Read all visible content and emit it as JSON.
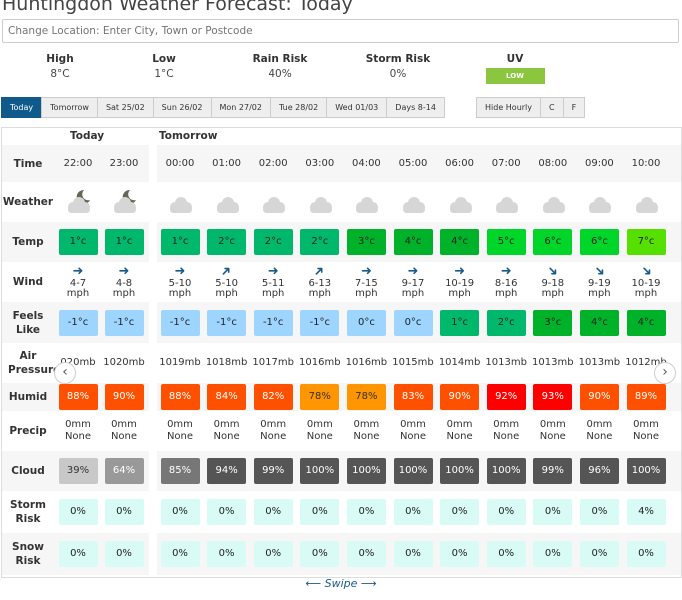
{
  "title": "Huntingdon Weather Forecast: Today",
  "search": {
    "placeholder": "Change Location: Enter City, Town or Postcode"
  },
  "summary": [
    {
      "label": "High",
      "value": "8°C"
    },
    {
      "label": "Low",
      "value": "1°C"
    },
    {
      "label": "Rain Risk",
      "value": "40%"
    },
    {
      "label": "Storm Risk",
      "value": "0%"
    }
  ],
  "uv": {
    "label": "UV",
    "value": "LOW",
    "color": "#8cc63f"
  },
  "tabs": [
    "Today",
    "Tomorrow",
    "Sat 25/02",
    "Sun 26/02",
    "Mon 27/02",
    "Tue 28/02",
    "Wed 01/03",
    "Days 8-14"
  ],
  "options": [
    "Hide Hourly",
    "C",
    "F"
  ],
  "days": [
    "Today",
    "Tomorrow"
  ],
  "row_labels": {
    "time": "Time",
    "weather": "Weather",
    "temp": "Temp",
    "wind": "Wind",
    "feels": "Feels Like",
    "pressure": "Air Pressure",
    "humid": "Humid",
    "precip": "Precip",
    "cloud": "Cloud",
    "storm": "Storm Risk",
    "snow": "Snow Risk"
  },
  "wind_unit": "mph",
  "swipe": "⟵ Swipe ⟶",
  "hours": [
    {
      "day": 0,
      "time": "22:00",
      "weather": "partly-cloudy-night-icon",
      "temp": "1°c",
      "temp_color": "#00b86b",
      "wind_dir": "E",
      "wind": "4-7",
      "feels": "-1°c",
      "feels_color": "#9dd5ff",
      "pressure": "020mb",
      "humid": "88%",
      "humid_color": "#ff5000",
      "precip": "0mm",
      "precip_type": "None",
      "cloud": "39%",
      "cloud_color": "#c8c8c8",
      "storm": "0%",
      "snow": "0%"
    },
    {
      "day": 0,
      "time": "23:00",
      "weather": "partly-cloudy-night-icon",
      "temp": "1°c",
      "temp_color": "#00b86b",
      "wind_dir": "E",
      "wind": "4-8",
      "feels": "-1°c",
      "feels_color": "#9dd5ff",
      "pressure": "1020mb",
      "humid": "90%",
      "humid_color": "#ff5000",
      "precip": "0mm",
      "precip_type": "None",
      "cloud": "64%",
      "cloud_color": "#999999",
      "storm": "0%",
      "snow": "0%"
    },
    {
      "day": 1,
      "time": "00:00",
      "weather": "cloud-icon",
      "temp": "1°c",
      "temp_color": "#00b86b",
      "wind_dir": "E",
      "wind": "5-10",
      "feels": "-1°c",
      "feels_color": "#9dd5ff",
      "pressure": "1019mb",
      "humid": "88%",
      "humid_color": "#ff5000",
      "precip": "0mm",
      "precip_type": "None",
      "cloud": "85%",
      "cloud_color": "#777777",
      "storm": "0%",
      "snow": "0%"
    },
    {
      "day": 1,
      "time": "01:00",
      "weather": "cloud-icon",
      "temp": "2°c",
      "temp_color": "#00b86b",
      "wind_dir": "NE",
      "wind": "5-10",
      "feels": "-1°c",
      "feels_color": "#9dd5ff",
      "pressure": "1018mb",
      "humid": "84%",
      "humid_color": "#ff5000",
      "precip": "0mm",
      "precip_type": "None",
      "cloud": "94%",
      "cloud_color": "#555555",
      "storm": "0%",
      "snow": "0%"
    },
    {
      "day": 1,
      "time": "02:00",
      "weather": "cloud-icon",
      "temp": "2°c",
      "temp_color": "#00b86b",
      "wind_dir": "E",
      "wind": "5-11",
      "feels": "-1°c",
      "feels_color": "#9dd5ff",
      "pressure": "1017mb",
      "humid": "82%",
      "humid_color": "#ff5000",
      "precip": "0mm",
      "precip_type": "None",
      "cloud": "99%",
      "cloud_color": "#555555",
      "storm": "0%",
      "snow": "0%"
    },
    {
      "day": 1,
      "time": "03:00",
      "weather": "cloud-icon",
      "temp": "2°c",
      "temp_color": "#00b86b",
      "wind_dir": "NE",
      "wind": "6-13",
      "feels": "-1°c",
      "feels_color": "#9dd5ff",
      "pressure": "1016mb",
      "humid": "78%",
      "humid_color": "#ff9500",
      "precip": "0mm",
      "precip_type": "None",
      "cloud": "100%",
      "cloud_color": "#555555",
      "storm": "0%",
      "snow": "0%"
    },
    {
      "day": 1,
      "time": "04:00",
      "weather": "cloud-icon",
      "temp": "3°c",
      "temp_color": "#00b22a",
      "wind_dir": "E",
      "wind": "7-15",
      "feels": "0°c",
      "feels_color": "#9dd5ff",
      "pressure": "1016mb",
      "humid": "78%",
      "humid_color": "#ff9500",
      "precip": "0mm",
      "precip_type": "None",
      "cloud": "100%",
      "cloud_color": "#555555",
      "storm": "0%",
      "snow": "0%"
    },
    {
      "day": 1,
      "time": "05:00",
      "weather": "cloud-icon",
      "temp": "4°c",
      "temp_color": "#00b22a",
      "wind_dir": "E",
      "wind": "9-17",
      "feels": "0°c",
      "feels_color": "#9dd5ff",
      "pressure": "1015mb",
      "humid": "83%",
      "humid_color": "#ff5000",
      "precip": "0mm",
      "precip_type": "None",
      "cloud": "100%",
      "cloud_color": "#555555",
      "storm": "0%",
      "snow": "0%"
    },
    {
      "day": 1,
      "time": "06:00",
      "weather": "cloud-icon",
      "temp": "4°c",
      "temp_color": "#00b22a",
      "wind_dir": "E",
      "wind": "10-19",
      "feels": "1°c",
      "feels_color": "#00b86b",
      "pressure": "1014mb",
      "humid": "90%",
      "humid_color": "#ff5000",
      "precip": "0mm",
      "precip_type": "None",
      "cloud": "100%",
      "cloud_color": "#555555",
      "storm": "0%",
      "snow": "0%"
    },
    {
      "day": 1,
      "time": "07:00",
      "weather": "cloud-icon",
      "temp": "5°c",
      "temp_color": "#00d62a",
      "wind_dir": "E",
      "wind": "8-16",
      "feels": "2°c",
      "feels_color": "#00b86b",
      "pressure": "1013mb",
      "humid": "92%",
      "humid_color": "#ff0000",
      "precip": "0mm",
      "precip_type": "None",
      "cloud": "100%",
      "cloud_color": "#555555",
      "storm": "0%",
      "snow": "0%"
    },
    {
      "day": 1,
      "time": "08:00",
      "weather": "cloud-icon",
      "temp": "6°c",
      "temp_color": "#00d62a",
      "wind_dir": "SE",
      "wind": "9-18",
      "feels": "3°c",
      "feels_color": "#00b22a",
      "pressure": "1013mb",
      "humid": "93%",
      "humid_color": "#ff0000",
      "precip": "0mm",
      "precip_type": "None",
      "cloud": "99%",
      "cloud_color": "#555555",
      "storm": "0%",
      "snow": "0%"
    },
    {
      "day": 1,
      "time": "09:00",
      "weather": "cloud-icon",
      "temp": "6°c",
      "temp_color": "#00d62a",
      "wind_dir": "SE",
      "wind": "9-19",
      "feels": "4°c",
      "feels_color": "#00b22a",
      "pressure": "1013mb",
      "humid": "90%",
      "humid_color": "#ff5000",
      "precip": "0mm",
      "precip_type": "None",
      "cloud": "96%",
      "cloud_color": "#555555",
      "storm": "0%",
      "snow": "0%"
    },
    {
      "day": 1,
      "time": "10:00",
      "weather": "cloud-icon",
      "temp": "7°c",
      "temp_color": "#55e000",
      "wind_dir": "SE",
      "wind": "10-19",
      "feels": "4°c",
      "feels_color": "#00b22a",
      "pressure": "1012mb",
      "humid": "89%",
      "humid_color": "#ff5000",
      "precip": "0mm",
      "precip_type": "None",
      "cloud": "100%",
      "cloud_color": "#555555",
      "storm": "4%",
      "snow": "0%"
    }
  ]
}
